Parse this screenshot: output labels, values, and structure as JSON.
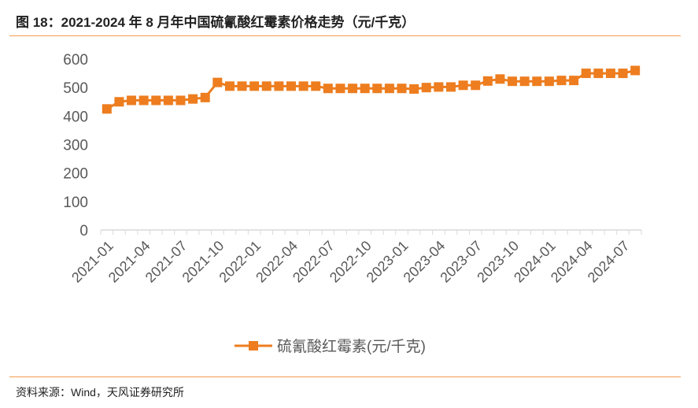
{
  "figure": {
    "title": "图 18：2021-2024 年 8 月年中国硫氰酸红霉素价格走势（元/千克）",
    "source": "资料来源：Wind，天风证券研究所"
  },
  "colors": {
    "accent": "#f39c4d",
    "series": "#ed7d1f",
    "axis": "#d9d9d9",
    "text": "#595959"
  },
  "chart_data": {
    "type": "line",
    "title": "",
    "xlabel": "",
    "ylabel": "",
    "ylim": [
      0,
      600
    ],
    "yticks": [
      0,
      100,
      200,
      300,
      400,
      500,
      600
    ],
    "grid": false,
    "legend_position": "bottom",
    "x_tick_labels": [
      "2021-01",
      "2021-04",
      "2021-07",
      "2021-10",
      "2022-01",
      "2022-04",
      "2022-07",
      "2022-10",
      "2023-01",
      "2023-04",
      "2023-07",
      "2023-10",
      "2024-01",
      "2024-04",
      "2024-07"
    ],
    "x": [
      "2021-01",
      "2021-02",
      "2021-03",
      "2021-04",
      "2021-05",
      "2021-06",
      "2021-07",
      "2021-08",
      "2021-09",
      "2021-10",
      "2021-11",
      "2021-12",
      "2022-01",
      "2022-02",
      "2022-03",
      "2022-04",
      "2022-05",
      "2022-06",
      "2022-07",
      "2022-08",
      "2022-09",
      "2022-10",
      "2022-11",
      "2022-12",
      "2023-01",
      "2023-02",
      "2023-03",
      "2023-04",
      "2023-05",
      "2023-06",
      "2023-07",
      "2023-08",
      "2023-09",
      "2023-10",
      "2023-11",
      "2023-12",
      "2024-01",
      "2024-02",
      "2024-03",
      "2024-04",
      "2024-05",
      "2024-06",
      "2024-07",
      "2024-08"
    ],
    "series": [
      {
        "name": "硫氰酸红霉素(元/千克)",
        "values": [
          425,
          450,
          455,
          455,
          455,
          455,
          455,
          460,
          465,
          518,
          505,
          505,
          505,
          505,
          505,
          505,
          505,
          505,
          497,
          497,
          497,
          497,
          497,
          497,
          497,
          495,
          500,
          502,
          502,
          508,
          508,
          523,
          530,
          522,
          522,
          522,
          522,
          525,
          525,
          550,
          550,
          550,
          550,
          560
        ]
      }
    ]
  }
}
